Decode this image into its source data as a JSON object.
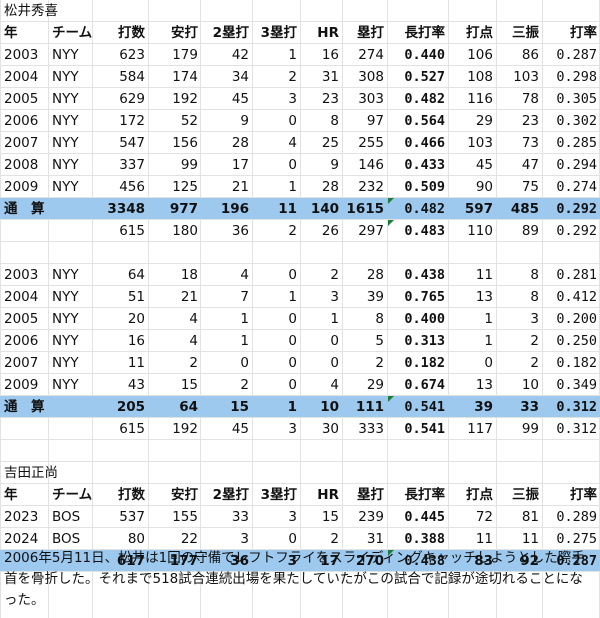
{
  "headers": [
    "年",
    "チーム",
    "打数",
    "安打",
    "2塁打",
    "3塁打",
    "HR",
    "塁打",
    "長打率",
    "打点",
    "三振",
    "打率"
  ],
  "sections": [
    {
      "title": "松井秀喜",
      "rows": [
        [
          "2003",
          "NYY",
          "623",
          "179",
          "42",
          "1",
          "16",
          "274",
          "0.440",
          "106",
          "86",
          "0.287"
        ],
        [
          "2004",
          "NYY",
          "584",
          "174",
          "34",
          "2",
          "31",
          "308",
          "0.527",
          "108",
          "103",
          "0.298"
        ],
        [
          "2005",
          "NYY",
          "629",
          "192",
          "45",
          "3",
          "23",
          "303",
          "0.482",
          "116",
          "78",
          "0.305"
        ],
        [
          "2006",
          "NYY",
          "172",
          "52",
          "9",
          "0",
          "8",
          "97",
          "0.564",
          "29",
          "23",
          "0.302"
        ],
        [
          "2007",
          "NYY",
          "547",
          "156",
          "28",
          "4",
          "25",
          "255",
          "0.466",
          "103",
          "73",
          "0.285"
        ],
        [
          "2008",
          "NYY",
          "337",
          "99",
          "17",
          "0",
          "9",
          "146",
          "0.433",
          "45",
          "47",
          "0.294"
        ],
        [
          "2009",
          "NYY",
          "456",
          "125",
          "21",
          "1",
          "28",
          "232",
          "0.509",
          "90",
          "75",
          "0.274"
        ]
      ],
      "total": [
        "通　算",
        "",
        "3348",
        "977",
        "196",
        "11",
        "140",
        "1615",
        "0.482",
        "597",
        "485",
        "0.292"
      ],
      "extra": [
        "",
        "",
        "615",
        "180",
        "36",
        "2",
        "26",
        "297",
        "0.483",
        "110",
        "89",
        "0.292"
      ]
    },
    {
      "title": "",
      "rows": [
        [
          "2003",
          "NYY",
          "64",
          "18",
          "4",
          "0",
          "2",
          "28",
          "0.438",
          "11",
          "8",
          "0.281"
        ],
        [
          "2004",
          "NYY",
          "51",
          "21",
          "7",
          "1",
          "3",
          "39",
          "0.765",
          "13",
          "8",
          "0.412"
        ],
        [
          "2005",
          "NYY",
          "20",
          "4",
          "1",
          "0",
          "1",
          "8",
          "0.400",
          "1",
          "3",
          "0.200"
        ],
        [
          "2006",
          "NYY",
          "16",
          "4",
          "1",
          "0",
          "0",
          "5",
          "0.313",
          "1",
          "2",
          "0.250"
        ],
        [
          "2007",
          "NYY",
          "11",
          "2",
          "0",
          "0",
          "0",
          "2",
          "0.182",
          "0",
          "2",
          "0.182"
        ],
        [
          "2009",
          "NYY",
          "43",
          "15",
          "2",
          "0",
          "4",
          "29",
          "0.674",
          "13",
          "10",
          "0.349"
        ]
      ],
      "total": [
        "通　算",
        "",
        "205",
        "64",
        "15",
        "1",
        "10",
        "111",
        "0.541",
        "39",
        "33",
        "0.312"
      ],
      "extra": [
        "",
        "",
        "615",
        "192",
        "45",
        "3",
        "30",
        "333",
        "0.541",
        "117",
        "99",
        "0.312"
      ]
    },
    {
      "title": "吉田正尚",
      "rows": [
        [
          "2023",
          "BOS",
          "537",
          "155",
          "33",
          "3",
          "15",
          "239",
          "0.445",
          "72",
          "81",
          "0.289"
        ],
        [
          "2024",
          "BOS",
          "80",
          "22",
          "3",
          "0",
          "2",
          "31",
          "0.388",
          "11",
          "11",
          "0.275"
        ]
      ],
      "total": [
        "",
        "",
        "617",
        "177",
        "36",
        "3",
        "17",
        "270",
        "0.438",
        "83",
        "92",
        "0.287"
      ]
    }
  ],
  "note": "2006年5月11日、松井は1回の守備でレフトフライをスライディングキャッチしようとした際手首を骨折した。それまで518試合連続出場を果たしていたがこの試合で記録が途切れることになった。",
  "colors": {
    "total_fill": "#9dc9ef",
    "grid": "#e2e2e2",
    "comment_marker": "#1e7c3a"
  }
}
